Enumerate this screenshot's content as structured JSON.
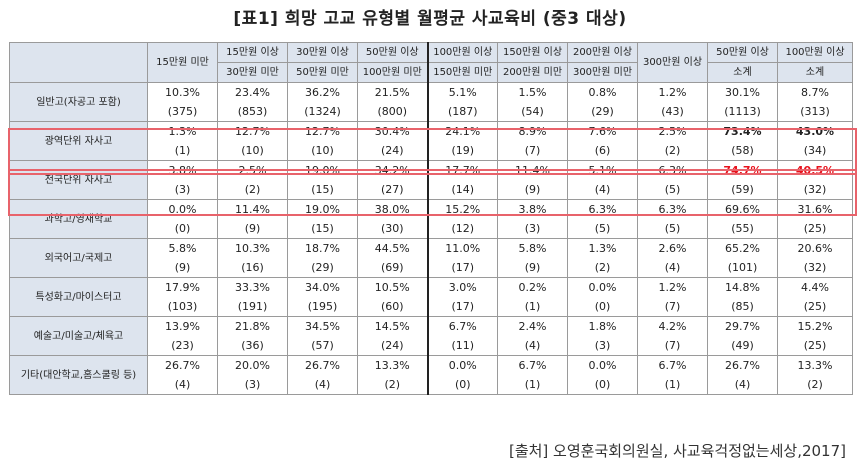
{
  "title": "[표1] 희망 고교 유형별 월평균 사교육비 (중3 대상)",
  "columns": [
    [
      "15만원 미만",
      ""
    ],
    [
      "15만원 이상",
      "30만원 미만"
    ],
    [
      "30만원 이상",
      "50만원 미만"
    ],
    [
      "50만원 이상",
      "100만원 미만"
    ],
    [
      "100만원 이상",
      "150만원 미만"
    ],
    [
      "150만원 이상",
      "200만원 미만"
    ],
    [
      "200만원 이상",
      "300만원 미만"
    ],
    [
      "300만원 이상",
      ""
    ],
    [
      "50만원 이상",
      "소계"
    ],
    [
      "100만원 이상",
      "소계"
    ]
  ],
  "rows": [
    {
      "label": "일반고(자공고 포함)",
      "pct": [
        "10.3%",
        "23.4%",
        "36.2%",
        "21.5%",
        "5.1%",
        "1.5%",
        "0.8%",
        "1.2%",
        "30.1%",
        "8.7%"
      ],
      "cnt": [
        "(375)",
        "(853)",
        "(1324)",
        "(800)",
        "(187)",
        "(54)",
        "(29)",
        "(43)",
        "(1113)",
        "(313)"
      ]
    },
    {
      "label": "광역단위 자사고",
      "pct": [
        "1.3%",
        "12.7%",
        "12.7%",
        "30.4%",
        "24.1%",
        "8.9%",
        "7.6%",
        "2.5%",
        "73.4%",
        "43.0%"
      ],
      "cnt": [
        "(1)",
        "(10)",
        "(10)",
        "(24)",
        "(19)",
        "(7)",
        "(6)",
        "(2)",
        "(58)",
        "(34)"
      ]
    },
    {
      "label": "전국단위 자사고",
      "pct": [
        "3.8%",
        "2.5%",
        "19.0%",
        "34.2%",
        "17.7%",
        "11.4%",
        "5.1%",
        "6.3%",
        "74.7%",
        "40.5%"
      ],
      "cnt": [
        "(3)",
        "(2)",
        "(15)",
        "(27)",
        "(14)",
        "(9)",
        "(4)",
        "(5)",
        "(59)",
        "(32)"
      ]
    },
    {
      "label": "과학고/영재학교",
      "pct": [
        "0.0%",
        "11.4%",
        "19.0%",
        "38.0%",
        "15.2%",
        "3.8%",
        "6.3%",
        "6.3%",
        "69.6%",
        "31.6%"
      ],
      "cnt": [
        "(0)",
        "(9)",
        "(15)",
        "(30)",
        "(12)",
        "(3)",
        "(5)",
        "(5)",
        "(55)",
        "(25)"
      ]
    },
    {
      "label": "외국어고/국제고",
      "pct": [
        "5.8%",
        "10.3%",
        "18.7%",
        "44.5%",
        "11.0%",
        "5.8%",
        "1.3%",
        "2.6%",
        "65.2%",
        "20.6%"
      ],
      "cnt": [
        "(9)",
        "(16)",
        "(29)",
        "(69)",
        "(17)",
        "(9)",
        "(2)",
        "(4)",
        "(101)",
        "(32)"
      ]
    },
    {
      "label": "특성화고/마이스터고",
      "pct": [
        "17.9%",
        "33.3%",
        "34.0%",
        "10.5%",
        "3.0%",
        "0.2%",
        "0.0%",
        "1.2%",
        "14.8%",
        "4.4%"
      ],
      "cnt": [
        "(103)",
        "(191)",
        "(195)",
        "(60)",
        "(17)",
        "(1)",
        "(0)",
        "(7)",
        "(85)",
        "(25)"
      ]
    },
    {
      "label": "예술고/미술고/체육고",
      "pct": [
        "13.9%",
        "21.8%",
        "34.5%",
        "14.5%",
        "6.7%",
        "2.4%",
        "1.8%",
        "4.2%",
        "29.7%",
        "15.2%"
      ],
      "cnt": [
        "(23)",
        "(36)",
        "(57)",
        "(24)",
        "(11)",
        "(4)",
        "(3)",
        "(7)",
        "(49)",
        "(25)"
      ]
    },
    {
      "label": "기타(대안학교,홈스쿨링 등)",
      "pct": [
        "26.7%",
        "20.0%",
        "26.7%",
        "13.3%",
        "0.0%",
        "6.7%",
        "0.0%",
        "6.7%",
        "26.7%",
        "13.3%"
      ],
      "cnt": [
        "(4)",
        "(3)",
        "(4)",
        "(2)",
        "(0)",
        "(1)",
        "(0)",
        "(1)",
        "(4)",
        "(2)"
      ]
    }
  ],
  "source": "[출처] 오영훈국회의원실, 사교육걱정없는세상,2017]",
  "colors": {
    "header_bg": "#dde4ee",
    "highlight_border": "#e8636b",
    "emphasis_red": "#e8121c"
  }
}
